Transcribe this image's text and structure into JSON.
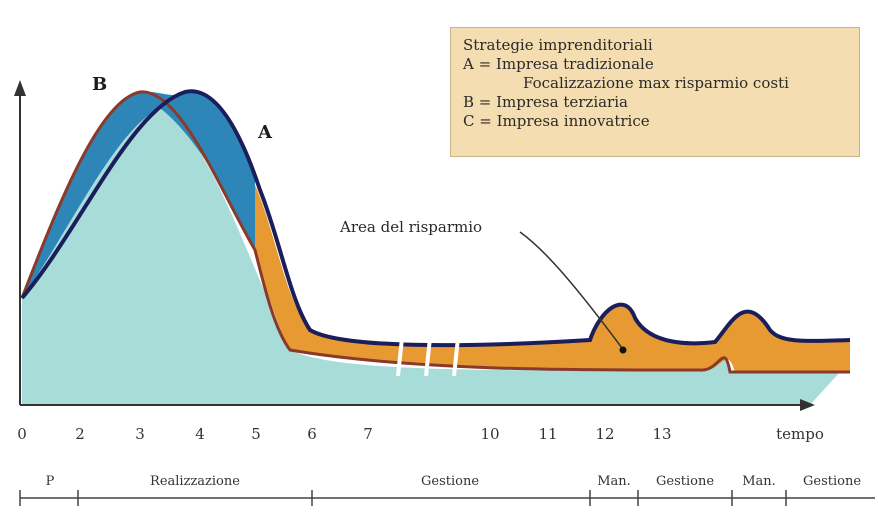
{
  "legend": {
    "title": "Strategie imprenditoriali",
    "items": [
      "A = Impresa tradizionale",
      "Focalizzazione max risparmio costi",
      "B = Impresa terziaria",
      "C = Impresa innovatrice"
    ]
  },
  "curve_labels": {
    "a": "A",
    "b": "B"
  },
  "annotation": "Area del risparmio",
  "x_axis": {
    "ticks": [
      "0",
      "2",
      "3",
      "4",
      "5",
      "6",
      "7",
      "10",
      "11",
      "12",
      "13"
    ],
    "label": "tempo"
  },
  "phases": [
    "P",
    "Realizzazione",
    "Gestione",
    "Man.",
    "Gestione",
    "Man.",
    "Gestione"
  ],
  "colors": {
    "fill_base": "#a8dcd8",
    "fill_a_excess": "#2e86b8",
    "fill_saving": "#e89a32",
    "line_a": "#1a1f5c",
    "line_b": "#8a3a2a",
    "axis": "#333333",
    "legend_bg": "#f4ddb0"
  }
}
